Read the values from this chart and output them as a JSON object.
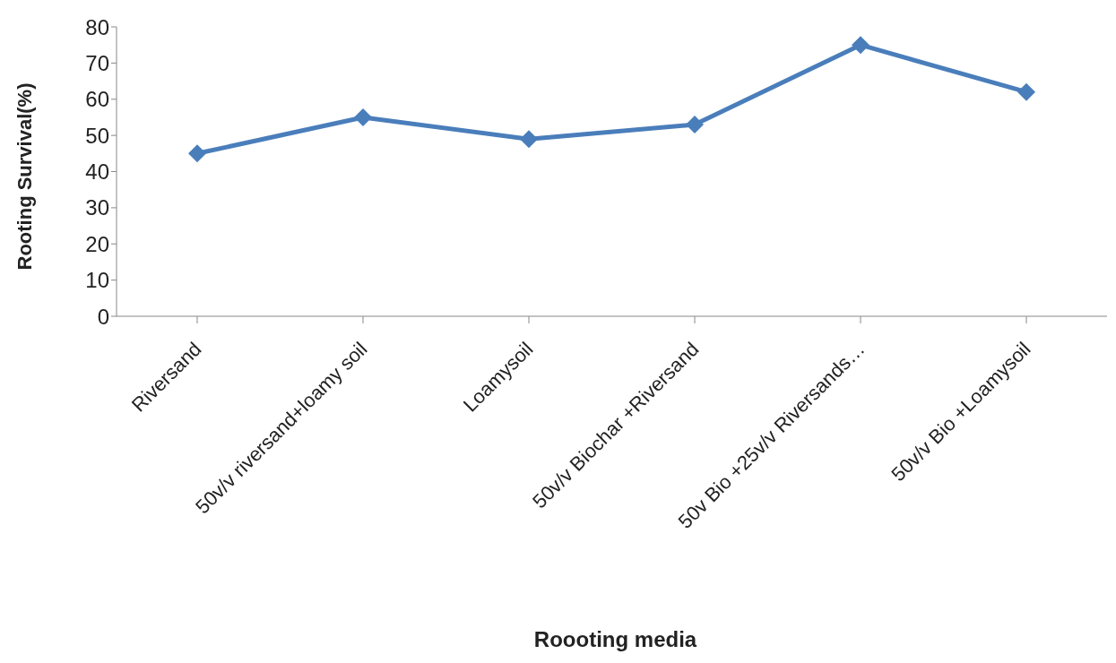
{
  "chart_data": {
    "type": "line",
    "xlabel": "Roooting media",
    "ylabel": "Rooting Survival(%)",
    "categories": [
      "Riversand",
      "50v/v riversand+loamy soil",
      "Loamysoil",
      "50v/v Biochar +Riversand",
      "50v Bio +25v/v Riversands…",
      "50v/v Bio +Loamysoil"
    ],
    "series": [
      {
        "color": "#4a7ebb",
        "values": [
          45,
          55,
          49,
          53,
          75,
          62
        ]
      }
    ],
    "ylim": [
      0,
      80
    ],
    "yticks": [
      0,
      10,
      20,
      30,
      40,
      50,
      60,
      70,
      80
    ],
    "grid": false,
    "legend": false,
    "marker": "diamond",
    "line_style": "solid"
  }
}
